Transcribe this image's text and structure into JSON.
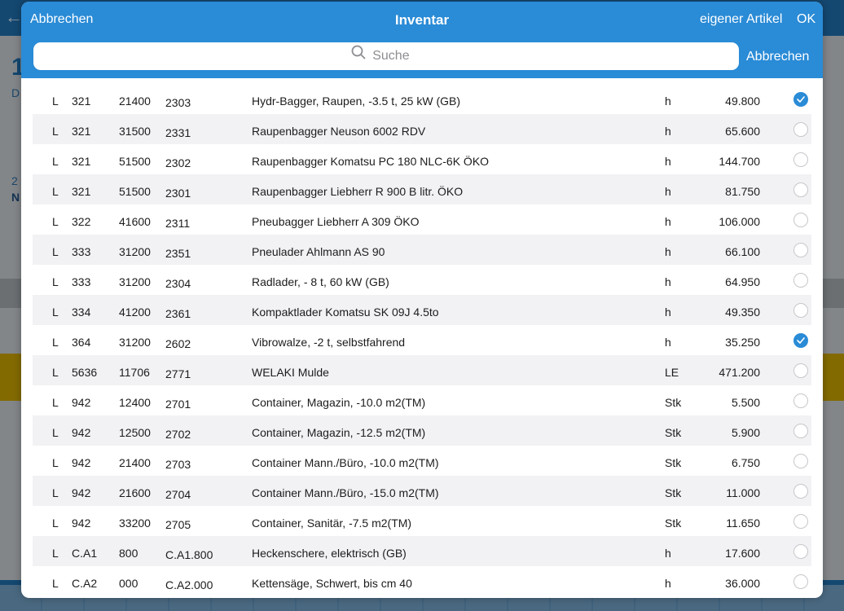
{
  "header": {
    "cancel_label": "Abbrechen",
    "title": "Inventar",
    "custom_item_label": "eigener Artikel",
    "ok_label": "OK"
  },
  "search": {
    "placeholder": "Suche",
    "cancel_label": "Abbrechen"
  },
  "background": {
    "big_number": "1",
    "line1": "D",
    "line2": "2",
    "line3": "N"
  },
  "colors": {
    "accent": "#2a8bd6",
    "alt_row": "#f2f2f4"
  },
  "items": [
    {
      "kind": "L",
      "code1": "321",
      "code2": "21400",
      "code3": "2303",
      "description": "Hydr-Bagger, Raupen, -3.5 t, 25 kW (GB)",
      "unit": "h",
      "price": "49.800",
      "selected": true
    },
    {
      "kind": "L",
      "code1": "321",
      "code2": "31500",
      "code3": "2331",
      "description": "Raupenbagger Neuson 6002 RDV",
      "unit": "h",
      "price": "65.600",
      "selected": false
    },
    {
      "kind": "L",
      "code1": "321",
      "code2": "51500",
      "code3": "2302",
      "description": "Raupenbagger Komatsu PC 180 NLC-6K ÖKO",
      "unit": "h",
      "price": "144.700",
      "selected": false
    },
    {
      "kind": "L",
      "code1": "321",
      "code2": "51500",
      "code3": "2301",
      "description": "Raupenbagger Liebherr R 900 B litr. ÖKO",
      "unit": "h",
      "price": "81.750",
      "selected": false
    },
    {
      "kind": "L",
      "code1": "322",
      "code2": "41600",
      "code3": "2311",
      "description": "Pneubagger Liebherr A 309 ÖKO",
      "unit": "h",
      "price": "106.000",
      "selected": false
    },
    {
      "kind": "L",
      "code1": "333",
      "code2": "31200",
      "code3": "2351",
      "description": "Pneulader Ahlmann AS 90",
      "unit": "h",
      "price": "66.100",
      "selected": false
    },
    {
      "kind": "L",
      "code1": "333",
      "code2": "31200",
      "code3": "2304",
      "description": "Radlader, - 8 t, 60 kW (GB)",
      "unit": "h",
      "price": "64.950",
      "selected": false
    },
    {
      "kind": "L",
      "code1": "334",
      "code2": "41200",
      "code3": "2361",
      "description": "Kompaktlader Komatsu SK 09J 4.5to",
      "unit": "h",
      "price": "49.350",
      "selected": false
    },
    {
      "kind": "L",
      "code1": "364",
      "code2": "31200",
      "code3": "2602",
      "description": "Vibrowalze, -2 t, selbstfahrend",
      "unit": "h",
      "price": "35.250",
      "selected": true
    },
    {
      "kind": "L",
      "code1": "5636",
      "code2": "11706",
      "code3": "2771",
      "description": "WELAKI Mulde",
      "unit": "LE",
      "price": "471.200",
      "selected": false
    },
    {
      "kind": "L",
      "code1": "942",
      "code2": "12400",
      "code3": "2701",
      "description": "Container, Magazin, -10.0 m2(TM)",
      "unit": "Stk",
      "price": "5.500",
      "selected": false
    },
    {
      "kind": "L",
      "code1": "942",
      "code2": "12500",
      "code3": "2702",
      "description": "Container, Magazin, -12.5 m2(TM)",
      "unit": "Stk",
      "price": "5.900",
      "selected": false
    },
    {
      "kind": "L",
      "code1": "942",
      "code2": "21400",
      "code3": "2703",
      "description": "Container Mann./Büro,  -10.0 m2(TM)",
      "unit": "Stk",
      "price": "6.750",
      "selected": false
    },
    {
      "kind": "L",
      "code1": "942",
      "code2": "21600",
      "code3": "2704",
      "description": "Container Mann./Büro,  -15.0 m2(TM)",
      "unit": "Stk",
      "price": "11.000",
      "selected": false
    },
    {
      "kind": "L",
      "code1": "942",
      "code2": "33200",
      "code3": "2705",
      "description": "Container, Sanitär,   -7.5 m2(TM)",
      "unit": "Stk",
      "price": "11.650",
      "selected": false
    },
    {
      "kind": "L",
      "code1": "C.A1",
      "code2": "800",
      "code3": "C.A1.800",
      "description": "Heckenschere, elektrisch (GB)",
      "unit": "h",
      "price": "17.600",
      "selected": false
    },
    {
      "kind": "L",
      "code1": "C.A2",
      "code2": "000",
      "code3": "C.A2.000",
      "description": "Kettensäge, Schwert, bis cm 40",
      "unit": "h",
      "price": "36.000",
      "selected": false
    }
  ]
}
